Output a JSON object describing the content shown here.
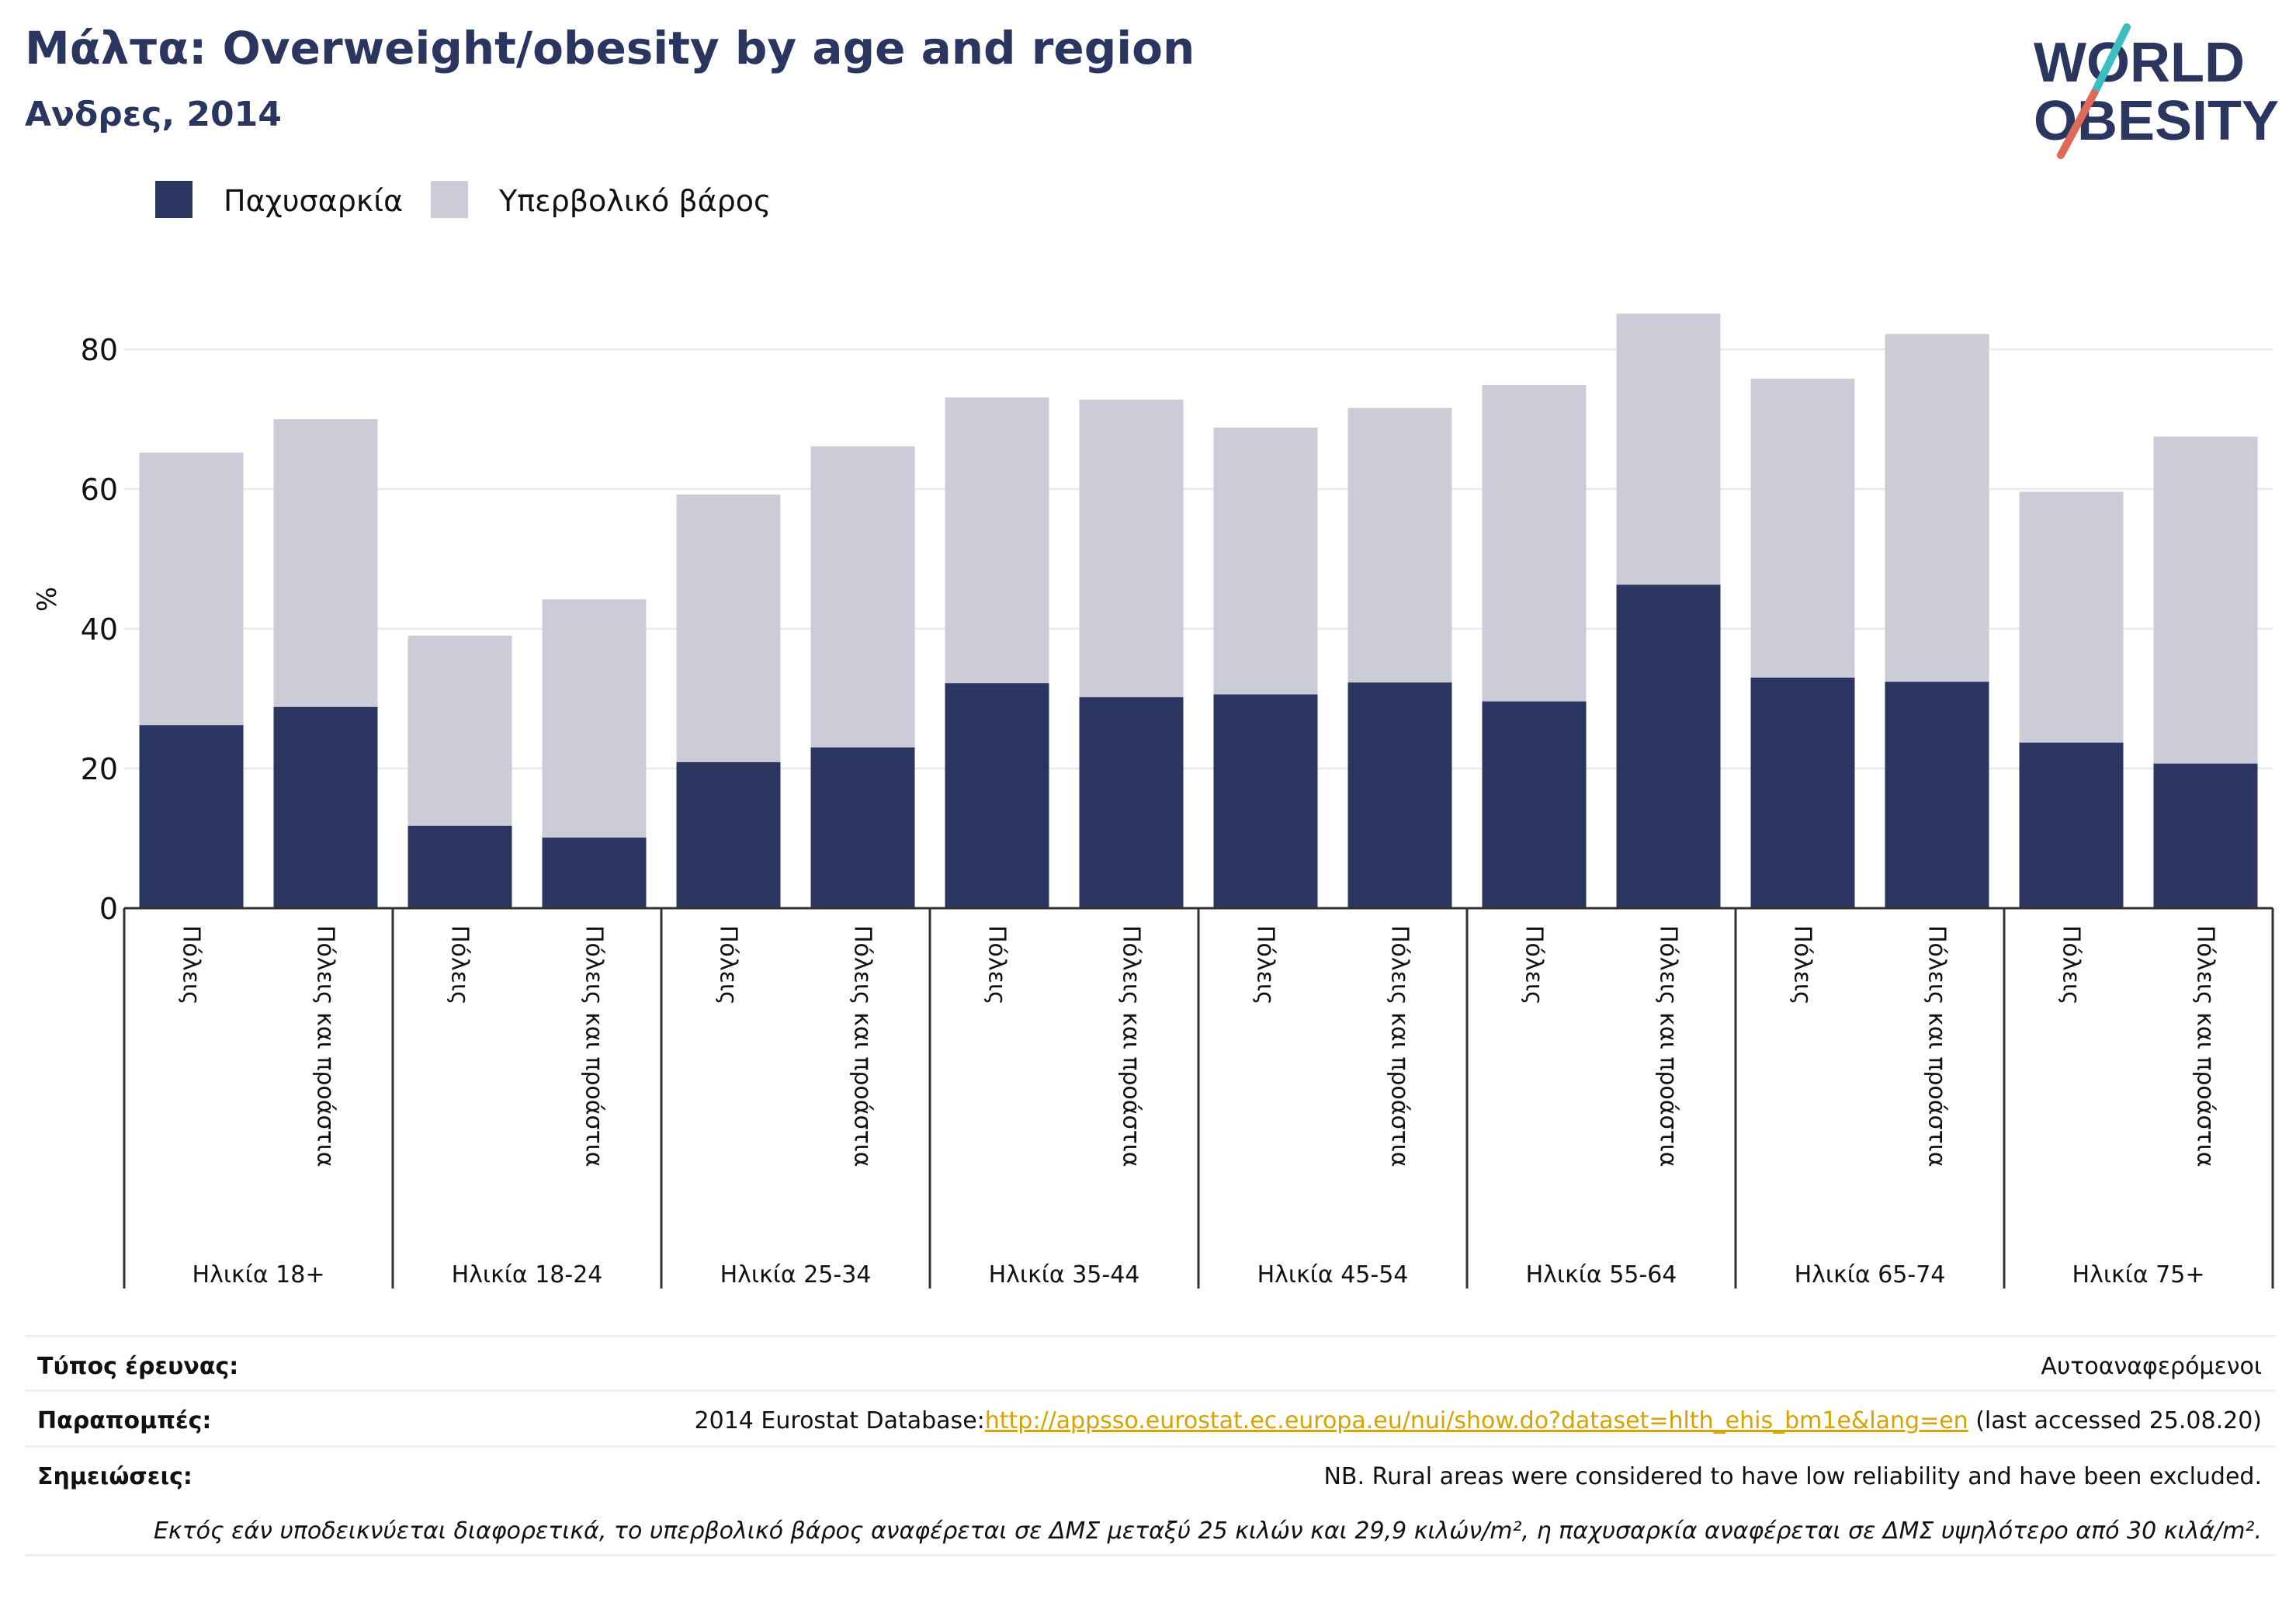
{
  "header": {
    "title": "Μάλτα: Overweight/obesity by age and region",
    "subtitle": "Ανδρες, 2014",
    "logo_text": [
      "WORLD",
      "OBESITY"
    ]
  },
  "colors": {
    "obesity": "#2a3560",
    "overweight": "#cbccd8",
    "text": "#2a3560",
    "logo_slash_top": "#3bbfc0",
    "logo_slash_bottom": "#e06a5a"
  },
  "chart_data": {
    "type": "bar",
    "stacked": true,
    "ylabel": "%",
    "ylim": [
      0,
      90
    ],
    "yticks": [
      0,
      20,
      40,
      60,
      80
    ],
    "grid": true,
    "legend_position": "top-left",
    "legend": [
      "Παχυσαρκία",
      "Υπερβολικό βάρος"
    ],
    "groups": [
      "Ηλικία 18+",
      "Ηλικία 18-24",
      "Ηλικία 25-34",
      "Ηλικία 35-44",
      "Ηλικία 45-54",
      "Ηλικία 55-64",
      "Ηλικία 65-74",
      "Ηλικία 75+"
    ],
    "subcategories": [
      "Πόλεις",
      "Πόλεις και προάστια"
    ],
    "series": [
      {
        "name": "Παχυσαρκία",
        "values": [
          26.2,
          28.8,
          11.8,
          10.1,
          20.9,
          23.0,
          32.2,
          30.2,
          30.6,
          32.3,
          29.6,
          46.3,
          33.0,
          32.4,
          23.7,
          20.7
        ]
      },
      {
        "name": "Υπερβολικό βάρος",
        "values": [
          39.0,
          41.2,
          27.2,
          34.1,
          38.3,
          43.1,
          40.9,
          42.6,
          38.2,
          39.3,
          45.3,
          38.8,
          42.8,
          49.8,
          35.9,
          46.8
        ]
      }
    ]
  },
  "footer": {
    "survey_label": "Τύπος έρευνας:",
    "survey_value": "Αυτοαναφερόμενοι",
    "refs_label": "Παραπομπές:",
    "refs_prefix": "2014 Eurostat Database:",
    "refs_link": "http://appsso.eurostat.ec.europa.eu/nui/show.do?dataset=hlth_ehis_bm1e&lang=en",
    "refs_suffix": " (last accessed 25.08.20)",
    "notes_label": "Σημειώσεις:",
    "notes_value": "NB. Rural areas were considered to have low reliability and have been excluded.",
    "definition": "Εκτός εάν υποδεικνύεται διαφορετικά, το υπερβολικό βάρος αναφέρεται σε ΔΜΣ μεταξύ 25 κιλών και 29,9 κιλών/m², η παχυσαρκία αναφέρεται σε ΔΜΣ υψηλότερο από 30 κιλά/m²."
  }
}
